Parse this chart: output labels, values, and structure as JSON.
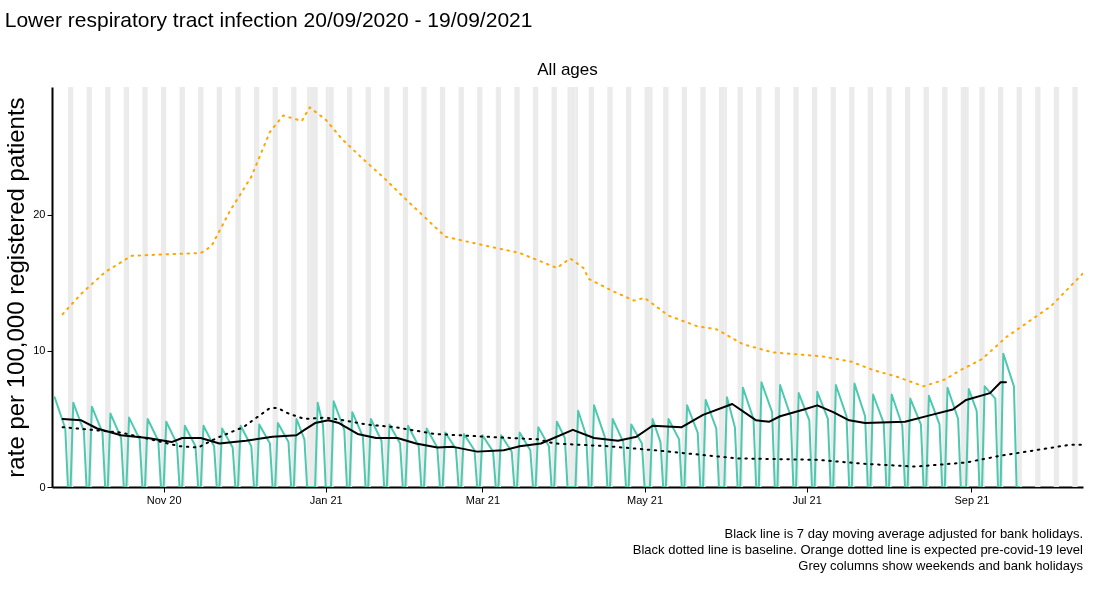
{
  "chart_data": {
    "type": "line",
    "title": "Lower respiratory tract infection 20/09/2020 - 19/09/2021",
    "subtitle": "All ages",
    "ylabel": "rate per 100,000 registered patients",
    "annotations": [
      "Black line is 7 day moving average adjusted for bank holidays.",
      "Black dotted line is baseline. Orange dotted line is expected pre-covid-19 level",
      "Grey columns show weekends and bank holidays"
    ],
    "xlim": [
      "2020-09-20",
      "2021-10-13"
    ],
    "xticks": [
      {
        "value": "2020-11-01",
        "label": "Nov 20"
      },
      {
        "value": "2021-01-01",
        "label": "Jan 21"
      },
      {
        "value": "2021-03-01",
        "label": "Mar 21"
      },
      {
        "value": "2021-05-01",
        "label": "May 21"
      },
      {
        "value": "2021-07-01",
        "label": "Jul 21"
      },
      {
        "value": "2021-09-01",
        "label": "Sep 21"
      }
    ],
    "ylim": [
      0,
      29.4
    ],
    "yticks": [
      0,
      10,
      20
    ],
    "grid": false,
    "series": [
      {
        "color": "#4ec9b0",
        "line_style": "solid",
        "x": [
          "2020-09-21",
          "2020-09-25",
          "2020-09-26",
          "2020-09-27",
          "2020-09-28",
          "2020-10-02",
          "2020-10-03",
          "2020-10-04",
          "2020-10-05",
          "2020-10-09",
          "2020-10-10",
          "2020-10-11",
          "2020-10-12",
          "2020-10-16",
          "2020-10-17",
          "2020-10-18",
          "2020-10-19",
          "2020-10-23",
          "2020-10-24",
          "2020-10-25",
          "2020-10-26",
          "2020-10-30",
          "2020-10-31",
          "2020-11-01",
          "2020-11-02",
          "2020-11-06",
          "2020-11-07",
          "2020-11-08",
          "2020-11-09",
          "2020-11-13",
          "2020-11-14",
          "2020-11-15",
          "2020-11-16",
          "2020-11-20",
          "2020-11-21",
          "2020-11-22",
          "2020-11-23",
          "2020-11-27",
          "2020-11-28",
          "2020-11-29",
          "2020-11-30",
          "2020-12-04",
          "2020-12-05",
          "2020-12-06",
          "2020-12-07",
          "2020-12-11",
          "2020-12-12",
          "2020-12-13",
          "2020-12-14",
          "2020-12-18",
          "2020-12-19",
          "2020-12-20",
          "2020-12-21",
          "2020-12-24",
          "2020-12-25",
          "2020-12-26",
          "2020-12-27",
          "2020-12-28",
          "2020-12-29",
          "2020-12-31",
          "2021-01-01",
          "2021-01-02",
          "2021-01-03",
          "2021-01-04",
          "2021-01-08",
          "2021-01-09",
          "2021-01-10",
          "2021-01-11",
          "2021-01-15",
          "2021-01-16",
          "2021-01-17",
          "2021-01-18",
          "2021-01-22",
          "2021-01-23",
          "2021-01-24",
          "2021-01-25",
          "2021-01-29",
          "2021-01-30",
          "2021-01-31",
          "2021-02-01",
          "2021-02-05",
          "2021-02-06",
          "2021-02-07",
          "2021-02-08",
          "2021-02-12",
          "2021-02-13",
          "2021-02-14",
          "2021-02-15",
          "2021-02-19",
          "2021-02-20",
          "2021-02-21",
          "2021-02-22",
          "2021-02-26",
          "2021-02-27",
          "2021-02-28",
          "2021-03-01",
          "2021-03-05",
          "2021-03-06",
          "2021-03-07",
          "2021-03-08",
          "2021-03-12",
          "2021-03-13",
          "2021-03-14",
          "2021-03-15",
          "2021-03-19",
          "2021-03-20",
          "2021-03-21",
          "2021-03-22",
          "2021-03-26",
          "2021-03-27",
          "2021-03-28",
          "2021-03-29",
          "2021-04-01",
          "2021-04-02",
          "2021-04-03",
          "2021-04-04",
          "2021-04-05",
          "2021-04-06",
          "2021-04-09",
          "2021-04-10",
          "2021-04-11",
          "2021-04-12",
          "2021-04-16",
          "2021-04-17",
          "2021-04-18",
          "2021-04-19",
          "2021-04-23",
          "2021-04-24",
          "2021-04-25",
          "2021-04-26",
          "2021-04-30",
          "2021-05-01",
          "2021-05-02",
          "2021-05-03",
          "2021-05-04",
          "2021-05-07",
          "2021-05-08",
          "2021-05-09",
          "2021-05-10",
          "2021-05-14",
          "2021-05-15",
          "2021-05-16",
          "2021-05-17",
          "2021-05-21",
          "2021-05-22",
          "2021-05-23",
          "2021-05-24",
          "2021-05-28",
          "2021-05-29",
          "2021-05-30",
          "2021-05-31",
          "2021-06-01",
          "2021-06-04",
          "2021-06-05",
          "2021-06-06",
          "2021-06-07",
          "2021-06-11",
          "2021-06-12",
          "2021-06-13",
          "2021-06-14",
          "2021-06-18",
          "2021-06-19",
          "2021-06-20",
          "2021-06-21",
          "2021-06-25",
          "2021-06-26",
          "2021-06-27",
          "2021-06-28",
          "2021-07-02",
          "2021-07-03",
          "2021-07-04",
          "2021-07-05",
          "2021-07-09",
          "2021-07-10",
          "2021-07-11",
          "2021-07-12",
          "2021-07-16",
          "2021-07-17",
          "2021-07-18",
          "2021-07-19",
          "2021-07-23",
          "2021-07-24",
          "2021-07-25",
          "2021-07-26",
          "2021-07-30",
          "2021-07-31",
          "2021-08-01",
          "2021-08-02",
          "2021-08-06",
          "2021-08-07",
          "2021-08-08",
          "2021-08-09",
          "2021-08-13",
          "2021-08-14",
          "2021-08-15",
          "2021-08-16",
          "2021-08-20",
          "2021-08-21",
          "2021-08-22",
          "2021-08-23",
          "2021-08-27",
          "2021-08-28",
          "2021-08-29",
          "2021-08-30",
          "2021-08-31",
          "2021-09-03",
          "2021-09-04",
          "2021-09-05",
          "2021-09-06",
          "2021-09-10",
          "2021-09-11",
          "2021-09-12",
          "2021-09-13",
          "2021-09-17",
          "2021-09-18",
          "2021-09-19"
        ],
        "values": [
          6.6,
          4.3,
          0,
          0,
          6.2,
          4.1,
          0,
          0,
          5.9,
          4.0,
          0,
          0,
          5.4,
          3.6,
          0,
          0,
          5.1,
          3.5,
          0,
          0,
          5.0,
          3.4,
          0,
          0,
          4.8,
          3.2,
          0,
          0,
          4.5,
          3.0,
          0,
          0,
          4.5,
          3.0,
          0,
          0,
          4.3,
          2.9,
          0,
          0,
          4.5,
          3.0,
          0,
          0,
          4.6,
          3.2,
          0,
          0,
          4.7,
          3.3,
          0,
          0,
          5.0,
          3.5,
          0,
          0,
          0,
          0,
          6.2,
          4.5,
          0,
          0,
          0,
          6.3,
          4.2,
          0,
          0,
          5.5,
          3.7,
          0,
          0,
          5.0,
          3.4,
          0,
          0,
          4.6,
          3.2,
          0,
          0,
          4.5,
          3.0,
          0,
          0,
          4.3,
          2.9,
          0,
          0,
          4.0,
          2.8,
          0,
          0,
          3.9,
          2.7,
          0,
          0,
          3.8,
          2.6,
          0,
          0,
          3.8,
          2.6,
          0,
          0,
          4.0,
          2.7,
          0,
          0,
          4.4,
          3.0,
          0,
          0,
          4.8,
          3.6,
          0,
          0,
          0,
          0,
          5.6,
          3.8,
          0,
          0,
          6.0,
          3.7,
          0,
          0,
          5.0,
          3.3,
          0,
          0,
          4.6,
          3.2,
          0,
          0,
          0,
          5.0,
          3.3,
          0,
          0,
          5.0,
          3.5,
          0,
          0,
          6.0,
          4.0,
          0,
          0,
          6.4,
          4.3,
          0,
          0,
          0,
          6.6,
          4.4,
          0,
          0,
          7.3,
          5.0,
          0,
          0,
          7.7,
          5.5,
          0,
          0,
          7.5,
          5.2,
          0,
          0,
          6.9,
          4.9,
          0,
          0,
          7.0,
          5.0,
          0,
          0,
          7.5,
          5.2,
          0,
          0,
          7.6,
          5.2,
          0,
          0,
          6.8,
          4.7,
          0,
          0,
          6.8,
          4.5,
          0,
          0,
          6.5,
          4.6,
          0,
          0,
          6.7,
          4.6,
          0,
          0,
          7.3,
          5.0,
          0,
          0,
          0,
          7.2,
          5.6,
          0,
          0,
          7.4,
          6.5,
          0,
          0,
          9.8,
          7.4,
          0,
          0
        ]
      },
      {
        "color": "#000000",
        "line_style": "solid",
        "x": [
          "2020-09-24",
          "2020-10-01",
          "2020-10-07",
          "2020-10-16",
          "2020-10-26",
          "2020-11-04",
          "2020-11-08",
          "2020-11-15",
          "2020-11-22",
          "2020-12-02",
          "2020-12-12",
          "2020-12-21",
          "2020-12-24",
          "2020-12-28",
          "2021-01-02",
          "2021-01-06",
          "2021-01-13",
          "2021-01-20",
          "2021-01-28",
          "2021-02-04",
          "2021-02-12",
          "2021-02-18",
          "2021-02-27",
          "2021-03-09",
          "2021-03-15",
          "2021-03-23",
          "2021-04-04",
          "2021-04-12",
          "2021-04-21",
          "2021-04-28",
          "2021-05-04",
          "2021-05-15",
          "2021-05-23",
          "2021-06-03",
          "2021-06-12",
          "2021-06-17",
          "2021-06-21",
          "2021-06-30",
          "2021-07-05",
          "2021-07-11",
          "2021-07-17",
          "2021-07-23",
          "2021-08-07",
          "2021-08-17",
          "2021-08-25",
          "2021-08-30",
          "2021-09-08",
          "2021-09-12",
          "2021-09-14"
        ],
        "values": [
          5.0,
          4.9,
          4.3,
          3.8,
          3.6,
          3.3,
          3.6,
          3.6,
          3.2,
          3.4,
          3.7,
          3.8,
          4.2,
          4.7,
          4.9,
          4.7,
          3.9,
          3.6,
          3.6,
          3.2,
          2.9,
          2.95,
          2.6,
          2.7,
          3.0,
          3.2,
          4.2,
          3.6,
          3.4,
          3.7,
          4.5,
          4.4,
          5.3,
          6.1,
          4.9,
          4.8,
          5.2,
          5.7,
          6.0,
          5.5,
          4.9,
          4.7,
          4.8,
          5.3,
          5.7,
          6.4,
          6.9,
          7.7,
          7.7
        ]
      },
      {
        "color": "#000000",
        "line_style": "dotted",
        "x": [
          "2020-09-24",
          "2020-10-16",
          "2020-11-07",
          "2020-11-14",
          "2020-11-21",
          "2020-12-01",
          "2020-12-11",
          "2020-12-14",
          "2020-12-18",
          "2020-12-24",
          "2021-01-01",
          "2021-01-08",
          "2021-01-16",
          "2021-01-27",
          "2021-02-11",
          "2021-03-02",
          "2021-03-22",
          "2021-03-28",
          "2021-04-17",
          "2021-05-05",
          "2021-06-05",
          "2021-07-05",
          "2021-07-23",
          "2021-08-11",
          "2021-08-30",
          "2021-09-12",
          "2021-10-08",
          "2021-10-13"
        ],
        "values": [
          4.4,
          4.0,
          3.0,
          2.9,
          3.6,
          4.4,
          5.8,
          5.8,
          5.4,
          5.0,
          5.1,
          4.9,
          4.6,
          4.4,
          3.9,
          3.7,
          3.5,
          3.2,
          3.0,
          2.7,
          2.1,
          2.0,
          1.7,
          1.5,
          1.8,
          2.3,
          3.1,
          3.1
        ]
      },
      {
        "color": "#ffa500",
        "line_style": "dotted",
        "x": [
          "2020-09-24",
          "2020-10-01",
          "2020-10-10",
          "2020-10-20",
          "2020-11-15",
          "2020-11-19",
          "2020-11-26",
          "2020-12-04",
          "2020-12-11",
          "2020-12-16",
          "2020-12-23",
          "2020-12-26",
          "2021-01-01",
          "2021-01-07",
          "2021-01-14",
          "2021-01-23",
          "2021-02-02",
          "2021-02-15",
          "2021-03-03",
          "2021-03-15",
          "2021-03-29",
          "2021-04-03",
          "2021-04-08",
          "2021-04-10",
          "2021-04-19",
          "2021-04-27",
          "2021-05-01",
          "2021-05-10",
          "2021-05-21",
          "2021-05-28",
          "2021-06-07",
          "2021-06-18",
          "2021-07-07",
          "2021-07-18",
          "2021-07-26",
          "2021-08-04",
          "2021-08-14",
          "2021-08-22",
          "2021-08-28",
          "2021-09-05",
          "2021-09-14",
          "2021-09-17",
          "2021-10-01",
          "2021-10-13"
        ],
        "values": [
          12.7,
          14.2,
          15.8,
          17.0,
          17.2,
          17.7,
          20.3,
          22.8,
          26.1,
          27.3,
          26.9,
          27.9,
          27.0,
          25.6,
          24.3,
          22.7,
          20.8,
          18.4,
          17.7,
          17.2,
          16.1,
          16.8,
          16.1,
          15.3,
          14.4,
          13.7,
          13.9,
          12.6,
          11.8,
          11.6,
          10.5,
          9.9,
          9.6,
          9.2,
          8.6,
          8.1,
          7.4,
          7.9,
          8.6,
          9.4,
          11.0,
          11.4,
          13.3,
          15.7
        ]
      }
    ],
    "bands": [
      {
        "axis": "x",
        "from": "2020-09-26",
        "to": "2020-09-28"
      },
      {
        "axis": "x",
        "from": "2020-10-03",
        "to": "2020-10-05"
      },
      {
        "axis": "x",
        "from": "2020-10-10",
        "to": "2020-10-12"
      },
      {
        "axis": "x",
        "from": "2020-10-17",
        "to": "2020-10-19"
      },
      {
        "axis": "x",
        "from": "2020-10-24",
        "to": "2020-10-26"
      },
      {
        "axis": "x",
        "from": "2020-10-31",
        "to": "2020-11-02"
      },
      {
        "axis": "x",
        "from": "2020-11-07",
        "to": "2020-11-09"
      },
      {
        "axis": "x",
        "from": "2020-11-14",
        "to": "2020-11-16"
      },
      {
        "axis": "x",
        "from": "2020-11-21",
        "to": "2020-11-23"
      },
      {
        "axis": "x",
        "from": "2020-11-28",
        "to": "2020-11-30"
      },
      {
        "axis": "x",
        "from": "2020-12-05",
        "to": "2020-12-07"
      },
      {
        "axis": "x",
        "from": "2020-12-12",
        "to": "2020-12-14"
      },
      {
        "axis": "x",
        "from": "2020-12-19",
        "to": "2020-12-21"
      },
      {
        "axis": "x",
        "from": "2020-12-25",
        "to": "2020-12-26"
      },
      {
        "axis": "x",
        "from": "2020-12-26",
        "to": "2020-12-28"
      },
      {
        "axis": "x",
        "from": "2020-12-28",
        "to": "2020-12-29"
      },
      {
        "axis": "x",
        "from": "2021-01-01",
        "to": "2021-01-02"
      },
      {
        "axis": "x",
        "from": "2021-01-02",
        "to": "2021-01-04"
      },
      {
        "axis": "x",
        "from": "2021-01-09",
        "to": "2021-01-11"
      },
      {
        "axis": "x",
        "from": "2021-01-16",
        "to": "2021-01-18"
      },
      {
        "axis": "x",
        "from": "2021-01-23",
        "to": "2021-01-25"
      },
      {
        "axis": "x",
        "from": "2021-01-30",
        "to": "2021-02-01"
      },
      {
        "axis": "x",
        "from": "2021-02-06",
        "to": "2021-02-08"
      },
      {
        "axis": "x",
        "from": "2021-02-13",
        "to": "2021-02-15"
      },
      {
        "axis": "x",
        "from": "2021-02-20",
        "to": "2021-02-22"
      },
      {
        "axis": "x",
        "from": "2021-02-27",
        "to": "2021-03-01"
      },
      {
        "axis": "x",
        "from": "2021-03-06",
        "to": "2021-03-08"
      },
      {
        "axis": "x",
        "from": "2021-03-13",
        "to": "2021-03-15"
      },
      {
        "axis": "x",
        "from": "2021-03-20",
        "to": "2021-03-22"
      },
      {
        "axis": "x",
        "from": "2021-03-27",
        "to": "2021-03-29"
      },
      {
        "axis": "x",
        "from": "2021-04-02",
        "to": "2021-04-03"
      },
      {
        "axis": "x",
        "from": "2021-04-03",
        "to": "2021-04-05"
      },
      {
        "axis": "x",
        "from": "2021-04-05",
        "to": "2021-04-06"
      },
      {
        "axis": "x",
        "from": "2021-04-10",
        "to": "2021-04-12"
      },
      {
        "axis": "x",
        "from": "2021-04-17",
        "to": "2021-04-19"
      },
      {
        "axis": "x",
        "from": "2021-04-24",
        "to": "2021-04-26"
      },
      {
        "axis": "x",
        "from": "2021-05-01",
        "to": "2021-05-03"
      },
      {
        "axis": "x",
        "from": "2021-05-03",
        "to": "2021-05-04"
      },
      {
        "axis": "x",
        "from": "2021-05-08",
        "to": "2021-05-10"
      },
      {
        "axis": "x",
        "from": "2021-05-15",
        "to": "2021-05-17"
      },
      {
        "axis": "x",
        "from": "2021-05-22",
        "to": "2021-05-24"
      },
      {
        "axis": "x",
        "from": "2021-05-29",
        "to": "2021-05-31"
      },
      {
        "axis": "x",
        "from": "2021-05-31",
        "to": "2021-06-01"
      },
      {
        "axis": "x",
        "from": "2021-06-05",
        "to": "2021-06-07"
      },
      {
        "axis": "x",
        "from": "2021-06-12",
        "to": "2021-06-14"
      },
      {
        "axis": "x",
        "from": "2021-06-19",
        "to": "2021-06-21"
      },
      {
        "axis": "x",
        "from": "2021-06-26",
        "to": "2021-06-28"
      },
      {
        "axis": "x",
        "from": "2021-07-03",
        "to": "2021-07-05"
      },
      {
        "axis": "x",
        "from": "2021-07-10",
        "to": "2021-07-12"
      },
      {
        "axis": "x",
        "from": "2021-07-17",
        "to": "2021-07-19"
      },
      {
        "axis": "x",
        "from": "2021-07-24",
        "to": "2021-07-26"
      },
      {
        "axis": "x",
        "from": "2021-07-31",
        "to": "2021-08-02"
      },
      {
        "axis": "x",
        "from": "2021-08-07",
        "to": "2021-08-09"
      },
      {
        "axis": "x",
        "from": "2021-08-14",
        "to": "2021-08-16"
      },
      {
        "axis": "x",
        "from": "2021-08-21",
        "to": "2021-08-23"
      },
      {
        "axis": "x",
        "from": "2021-08-28",
        "to": "2021-08-30"
      },
      {
        "axis": "x",
        "from": "2021-08-30",
        "to": "2021-08-31"
      },
      {
        "axis": "x",
        "from": "2021-09-04",
        "to": "2021-09-06"
      },
      {
        "axis": "x",
        "from": "2021-09-11",
        "to": "2021-09-13"
      },
      {
        "axis": "x",
        "from": "2021-09-18",
        "to": "2021-09-20"
      },
      {
        "axis": "x",
        "from": "2021-09-25",
        "to": "2021-09-27"
      },
      {
        "axis": "x",
        "from": "2021-10-02",
        "to": "2021-10-04"
      },
      {
        "axis": "x",
        "from": "2021-10-09",
        "to": "2021-10-11"
      }
    ]
  }
}
